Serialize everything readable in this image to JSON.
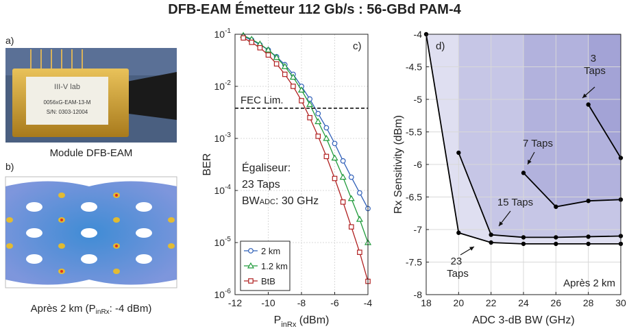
{
  "title": "DFB-EAM Émetteur 112 Gb/s : 56-GBd PAM-4",
  "panel_a": {
    "label": "a)",
    "caption": "Module DFB-EAM",
    "photo_text": [
      "III-V lab",
      "0056xG-EAM-13-M",
      "S/N: 0303-12004"
    ]
  },
  "panel_b": {
    "label": "b)",
    "caption": [
      "Après 2 km (P",
      "inRx",
      ": -4 dBm)"
    ]
  },
  "chart_data": [
    {
      "type": "line",
      "panel_label": "c)",
      "y_label": "BER",
      "x_label": [
        "P",
        "inRx",
        " (dBm)"
      ],
      "log_y": true,
      "grid": true,
      "legend": "lower left",
      "xlim": [
        -12,
        -4
      ],
      "xticks": [
        -12,
        -10,
        -8,
        -6,
        -4
      ],
      "ylim": [
        1e-06,
        0.1
      ],
      "yticks": [
        {
          "value": 1e-06,
          "label": "10",
          "exponent": "-6"
        },
        {
          "value": 1e-05,
          "label": "10",
          "exponent": "-5"
        },
        {
          "value": 0.0001,
          "label": "10",
          "exponent": "-4"
        },
        {
          "value": 0.001,
          "label": "10",
          "exponent": "-3"
        },
        {
          "value": 0.01,
          "label": "10",
          "exponent": "-2"
        },
        {
          "value": 0.1,
          "label": "10",
          "exponent": "-1"
        }
      ],
      "x": [
        -11.5,
        -11,
        -10.5,
        -10,
        -9.5,
        -9,
        -8.5,
        -8,
        -7.5,
        -7,
        -6.5,
        -6,
        -5.5,
        -5,
        -4.5,
        -4
      ],
      "series": [
        {
          "name": "2 km",
          "color": "#2f5fb8",
          "marker": "circle",
          "values": [
            0.09,
            0.078,
            0.063,
            0.05,
            0.037,
            0.026,
            0.017,
            0.01,
            0.0057,
            0.003,
            0.0016,
            0.0008,
            0.00037,
            0.00018,
            9e-05,
            4.5e-05
          ]
        },
        {
          "name": "1.2 km",
          "color": "#1f9a3a",
          "marker": "triangle",
          "values": [
            0.095,
            0.08,
            0.065,
            0.05,
            0.036,
            0.024,
            0.015,
            0.0085,
            0.0045,
            0.0021,
            0.001,
            0.00042,
            0.00018,
            7e-05,
            2.8e-05,
            1e-05
          ]
        },
        {
          "name": "BtB",
          "color": "#b02020",
          "marker": "square",
          "values": [
            0.085,
            0.07,
            0.055,
            0.04,
            0.027,
            0.017,
            0.01,
            0.0053,
            0.0025,
            0.0011,
            0.00045,
            0.00017,
            6e-05,
            2e-05,
            6.5e-06,
            1.8e-06
          ]
        }
      ],
      "hline": {
        "label": "FEC Lim.",
        "value": 0.0038
      },
      "annotation": [
        "Égaliseur:",
        "23 Taps",
        [
          "BW",
          "ADC",
          ": 30 GHz"
        ]
      ]
    },
    {
      "type": "area-line",
      "panel_label": "d)",
      "x_label": "ADC 3-dB BW (GHz)",
      "y_label": "Rx Sensitivity (dBm)",
      "grid": true,
      "xlim": [
        18,
        30
      ],
      "xticks": [
        18,
        20,
        22,
        24,
        26,
        28,
        30
      ],
      "ylim": [
        -8,
        -4
      ],
      "yticks": [
        -8,
        -7.5,
        -7,
        -6.5,
        -6,
        -5.5,
        -5,
        -4.5,
        -4
      ],
      "fill": "#6e6ebf",
      "color": "#000000",
      "series": [
        {
          "name": "23 Taps",
          "x": [
            18,
            20,
            22,
            24,
            26,
            28,
            30
          ],
          "values": [
            -4,
            -7.05,
            -7.2,
            -7.22,
            -7.22,
            -7.22,
            -7.22
          ]
        },
        {
          "name": "15 Taps",
          "x": [
            20,
            22,
            24,
            26,
            28,
            30
          ],
          "values": [
            -5.82,
            -7.08,
            -7.12,
            -7.12,
            -7.11,
            -7.1
          ]
        },
        {
          "name": "7 Taps",
          "x": [
            24,
            26,
            28,
            30
          ],
          "values": [
            -6.13,
            -6.65,
            -6.56,
            -6.54
          ]
        },
        {
          "name": "3 Taps",
          "x": [
            28,
            30
          ],
          "values": [
            -5.08,
            -5.9
          ]
        }
      ],
      "annotation": "Après 2 km"
    }
  ]
}
